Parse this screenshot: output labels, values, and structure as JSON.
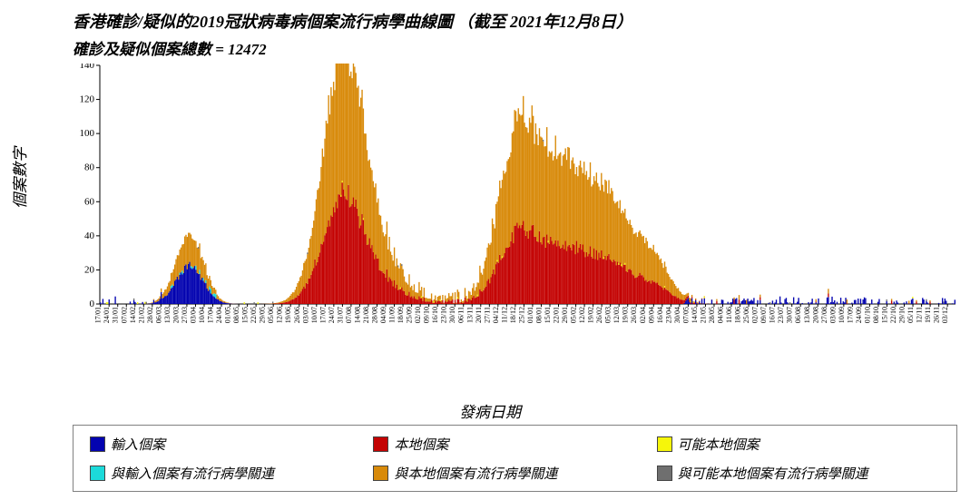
{
  "chart": {
    "type": "stacked_bar_epidemic_curve",
    "title": "香港確診/疑似的2019冠狀病毒病個案流行病學曲線圖  （截至 2021年12月8日）",
    "subtitle": "確診及疑似個案總數 = 12472",
    "ylabel": "個案數字",
    "xlabel": "發病日期",
    "background_color": "#ffffff",
    "axis_color": "#000000",
    "tick_font_size_pt": 10,
    "title_font_size_pt": 18,
    "label_font_size_pt": 17,
    "font_family": "KaiTi / 楷體, serif, italic",
    "y": {
      "min": 0,
      "max": 140,
      "tick_step": 20,
      "ticks": [
        0,
        20,
        40,
        60,
        80,
        100,
        120,
        140
      ]
    },
    "x": {
      "label_rotation_deg": 90,
      "n_bars": 690,
      "date_start": "2020-01-17",
      "date_end": "2021-12-08",
      "sample_tick_labels": [
        "17/01",
        "24/01",
        "31/01",
        "07/02",
        "14/02",
        "21/02",
        "28/02",
        "06/03",
        "13/03",
        "20/03",
        "27/03",
        "03/04",
        "10/04",
        "17/04",
        "24/04",
        "01/05",
        "08/05",
        "15/05",
        "22/05",
        "29/05",
        "05/06",
        "12/06",
        "19/06",
        "26/06",
        "03/07",
        "10/07",
        "17/07",
        "24/07",
        "31/07",
        "07/08",
        "14/08",
        "21/08",
        "28/08",
        "04/09",
        "11/09",
        "18/09",
        "25/09",
        "02/10",
        "09/10",
        "16/10",
        "23/10",
        "30/10",
        "06/11",
        "13/11",
        "20/11",
        "27/11",
        "04/12",
        "11/12",
        "18/12",
        "25/12",
        "01/01",
        "08/01",
        "15/01",
        "22/01",
        "29/01",
        "05/02",
        "12/02",
        "19/02",
        "26/02",
        "05/03",
        "12/03",
        "19/03",
        "26/03",
        "02/04",
        "09/04",
        "16/04",
        "23/04",
        "30/04",
        "07/05",
        "14/05",
        "21/05",
        "28/05",
        "04/06",
        "11/06",
        "18/06",
        "25/06",
        "02/07",
        "09/07",
        "16/07",
        "23/07",
        "30/07",
        "06/08",
        "13/08",
        "20/08",
        "27/08",
        "03/09",
        "10/09",
        "17/09",
        "24/09",
        "01/10",
        "08/10",
        "15/10",
        "22/10",
        "29/10",
        "05/11",
        "12/11",
        "19/11",
        "26/11",
        "03/12"
      ]
    },
    "series": [
      {
        "key": "imported",
        "label": "輸入個案",
        "color": "#0303b0"
      },
      {
        "key": "local",
        "label": "本地個案",
        "color": "#c40303"
      },
      {
        "key": "possibly_local",
        "label": "可能本地個案",
        "color": "#f6f60a"
      },
      {
        "key": "link_imported",
        "label": "與輸入個案有流行病學關連",
        "color": "#1cdada"
      },
      {
        "key": "link_local",
        "label": "與本地個案有流行病學關連",
        "color": "#d88a0a"
      },
      {
        "key": "link_possibly",
        "label": "與可能本地個案有流行病學關連",
        "color": "#6f6f6f"
      }
    ],
    "profile_comment": "values below are per-bar stacked heights, one object per day; approximated from pixels",
    "data": null
  }
}
